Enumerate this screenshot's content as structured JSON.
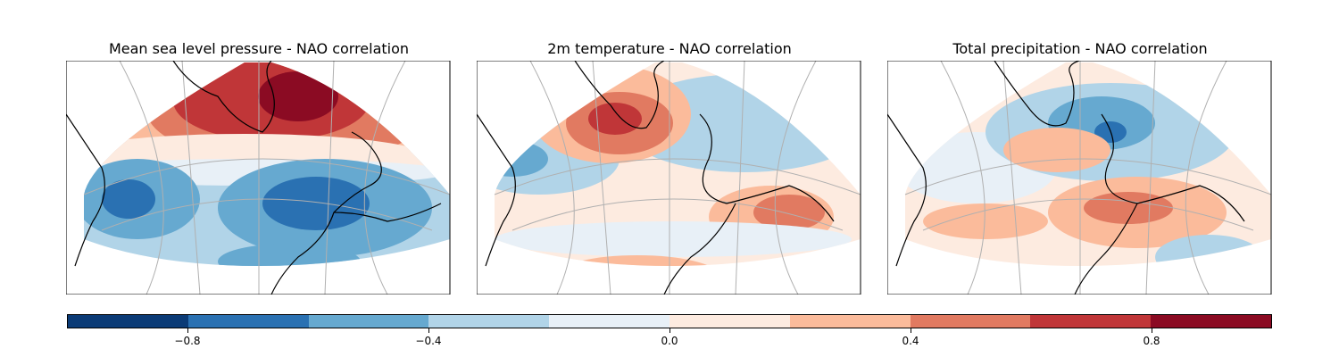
{
  "panels": [
    {
      "title": "Mean sea level pressure - NAO correlation",
      "field": "mslp"
    },
    {
      "title": "2m temperature - NAO correlation",
      "field": "t2m"
    },
    {
      "title": "Total precipitation - NAO correlation",
      "field": "tp"
    }
  ],
  "colorbar": {
    "min": -1.0,
    "max": 1.0,
    "levels": [
      -1.0,
      -0.8,
      -0.6,
      -0.4,
      -0.2,
      0.0,
      0.2,
      0.4,
      0.6,
      0.8,
      1.0
    ],
    "colors": [
      "#0b3b76",
      "#2a71b2",
      "#66a9d0",
      "#b1d4e8",
      "#e8f0f7",
      "#fdebe0",
      "#fbbb9b",
      "#e17a61",
      "#c03638",
      "#8b0b23"
    ],
    "ticks": [
      {
        "value": -0.8,
        "label": "−0.8"
      },
      {
        "value": -0.4,
        "label": "−0.4"
      },
      {
        "value": 0.0,
        "label": "0.0"
      },
      {
        "value": 0.4,
        "label": "0.4"
      },
      {
        "value": 0.8,
        "label": "0.8"
      }
    ]
  }
}
